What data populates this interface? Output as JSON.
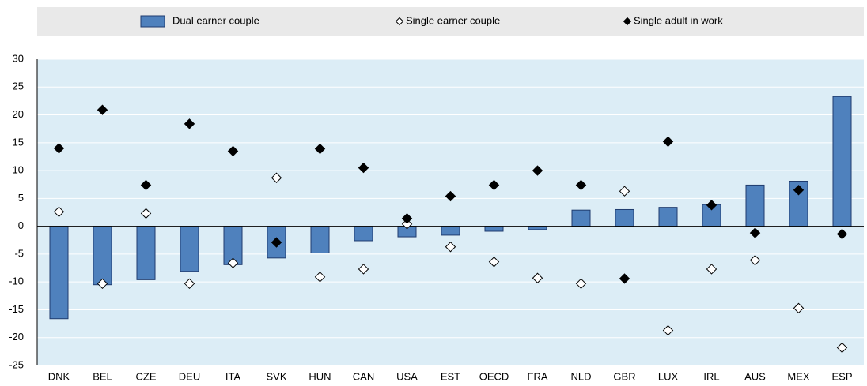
{
  "chart_data": {
    "type": "bar",
    "categories": [
      "DNK",
      "BEL",
      "CZE",
      "DEU",
      "ITA",
      "SVK",
      "HUN",
      "CAN",
      "USA",
      "EST",
      "OECD",
      "FRA",
      "NLD",
      "GBR",
      "LUX",
      "IRL",
      "AUS",
      "MEX",
      "ESP"
    ],
    "series": [
      {
        "name": "Dual earner couple",
        "color": "#4f81bd",
        "marker": "bar",
        "values": [
          -16.6,
          -10.5,
          -9.6,
          -8.1,
          -6.9,
          -5.7,
          -4.8,
          -2.6,
          -1.9,
          -1.6,
          -0.9,
          -0.6,
          2.9,
          3.0,
          3.4,
          3.9,
          7.4,
          8.1,
          23.3
        ]
      },
      {
        "name": "Single earner couple",
        "color": "#ffffff",
        "marker": "open-diamond",
        "values": [
          2.6,
          -10.3,
          2.3,
          -10.3,
          -6.6,
          8.7,
          -9.1,
          -7.7,
          0.4,
          -3.7,
          -6.4,
          -9.3,
          -10.3,
          6.3,
          -18.7,
          -7.7,
          -6.1,
          -14.7,
          -21.8
        ]
      },
      {
        "name": "Single adult in work",
        "color": "#000000",
        "marker": "diamond",
        "values": [
          14,
          20.9,
          7.4,
          18.4,
          13.5,
          -2.9,
          13.9,
          10.5,
          1.4,
          5.4,
          7.4,
          10,
          7.4,
          -9.4,
          15.2,
          3.8,
          -1.2,
          6.5,
          -1.4
        ]
      }
    ],
    "ylim": [
      -25,
      30
    ],
    "yticks": [
      -25,
      -20,
      -15,
      -10,
      -5,
      0,
      5,
      10,
      15,
      20,
      25,
      30
    ],
    "grid": true
  }
}
